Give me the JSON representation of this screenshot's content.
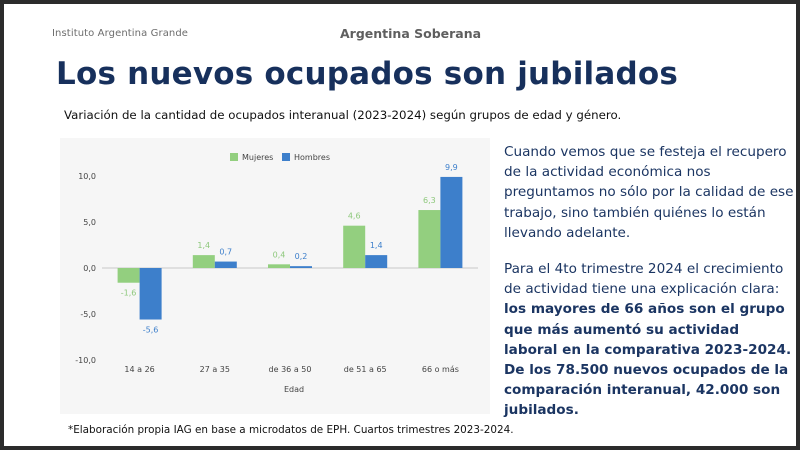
{
  "header": {
    "institute": "Instituto Argentina Grande",
    "brand": "Argentina Soberana",
    "title": "Los nuevos ocupados son jubilados",
    "subtitle": "Variación de la cantidad de ocupados interanual (2023-2024) según grupos de edad y género."
  },
  "chart_data": {
    "type": "bar",
    "title": "",
    "xlabel": "Edad",
    "ylabel": "",
    "categories": [
      "14 a 26",
      "27 a 35",
      "de 36 a 50",
      "de 51 a 65",
      "66 o más"
    ],
    "series": [
      {
        "name": "Mujeres",
        "values": [
          -1.6,
          1.4,
          0.4,
          4.6,
          6.3
        ],
        "labels": [
          "-1,6",
          "1,4",
          "0,4",
          "4,6",
          "6,3"
        ],
        "color": "#93cf7f",
        "label_color": "#8ec87c"
      },
      {
        "name": "Hombres",
        "values": [
          -5.6,
          0.7,
          0.2,
          1.4,
          9.9
        ],
        "labels": [
          "-5,6",
          "0,7",
          "0,2",
          "1,4",
          "9,9"
        ],
        "color": "#3d7fcb",
        "label_color": "#3d7fcb"
      }
    ],
    "ylim": [
      -10,
      10
    ],
    "yticks": [
      10,
      5,
      0,
      -5,
      -10
    ],
    "ytick_labels": [
      "10,0",
      "5,0",
      "0,0",
      "-5,0",
      "-10,0"
    ],
    "legend_position": "top-center",
    "grid": false
  },
  "text": {
    "p1": "Cuando vemos que se festeja el recupero de la actividad económica nos preguntamos no sólo por la calidad de ese trabajo, sino también quiénes lo están llevando adelante.",
    "p2_lead": "Para el 4to trimestre 2024 el crecimiento de actividad tiene una explicación clara: ",
    "p2_bold": "los mayores de 66 años son el grupo que más aumentó su actividad laboral en la comparativa 2023-2024.",
    "p3": "De los 78.500 nuevos ocupados de la comparación interanual, 42.000 son jubilados."
  },
  "footnote": "*Elaboración propia IAG en base a microdatos de EPH. Cuartos trimestres 2023-2024."
}
